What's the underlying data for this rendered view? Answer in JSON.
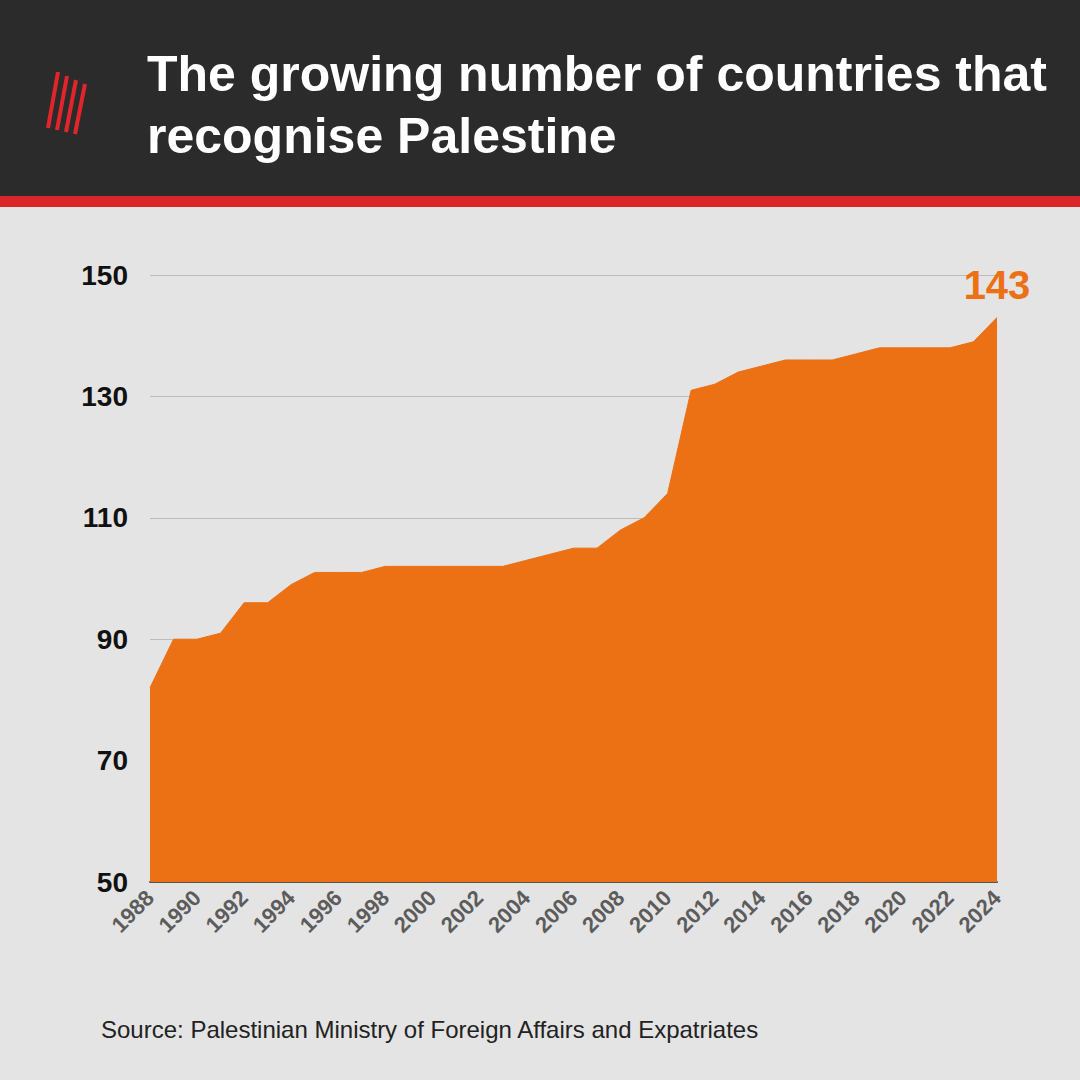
{
  "chart_data": {
    "type": "area",
    "title": "The growing number of countries that recognise Palestine",
    "source": "Source: Palestinian Ministry of Foreign Affairs and Expatriates",
    "categories": [
      "1988",
      null,
      "1990",
      null,
      "1992",
      null,
      "1994",
      null,
      "1996",
      null,
      "1998",
      null,
      "2000",
      null,
      "2002",
      null,
      "2004",
      null,
      "2006",
      null,
      "2008",
      null,
      "2010",
      null,
      "2012",
      null,
      "2014",
      null,
      "2016",
      null,
      "2018",
      null,
      "2020",
      null,
      "2022",
      null,
      "2024"
    ],
    "values": [
      82,
      90,
      90,
      91,
      96,
      96,
      99,
      101,
      101,
      101,
      102,
      102,
      102,
      102,
      102,
      102,
      103,
      104,
      105,
      105,
      108,
      110,
      114,
      131,
      132,
      134,
      135,
      136,
      136,
      136,
      137,
      138,
      138,
      138,
      138,
      139,
      143
    ],
    "color": "#ec7014",
    "ylim": [
      50,
      150
    ],
    "yticks": [
      50,
      70,
      90,
      110,
      130,
      150
    ],
    "grid": true,
    "annotations": [
      {
        "text": "143",
        "x": "2024",
        "y": 143
      }
    ]
  }
}
